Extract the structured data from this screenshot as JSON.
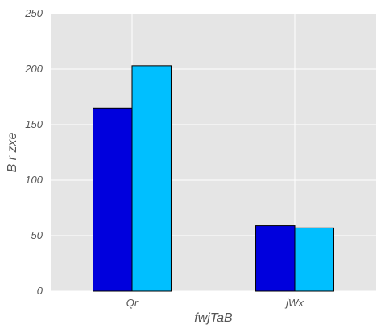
{
  "chart_data": {
    "type": "bar",
    "categories": [
      "Qr",
      "jWx"
    ],
    "series": [
      {
        "color": "#0000dd",
        "values": [
          165,
          59
        ]
      },
      {
        "color": "#00bfff",
        "values": [
          203,
          57
        ]
      }
    ],
    "title": "",
    "xlabel": "fwjTaB",
    "ylabel": "B r zxe",
    "ylim": [
      0,
      250
    ],
    "yticks": [
      0,
      50,
      100,
      150,
      200,
      250
    ],
    "grid": true,
    "background_color": "#e5e5e5",
    "grid_color": "#ffffff"
  }
}
